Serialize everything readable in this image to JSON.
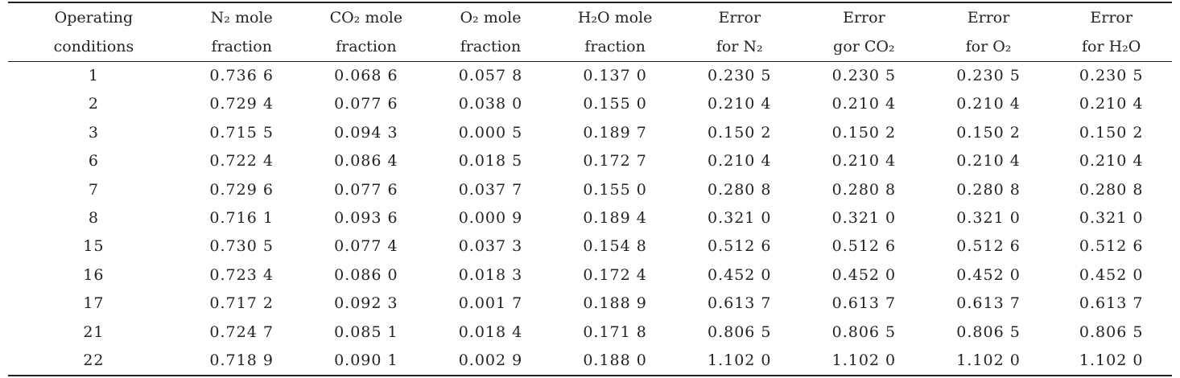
{
  "table": {
    "headers": [
      {
        "line1": "Operating",
        "line2": "conditions"
      },
      {
        "line1": "N₂ mole",
        "line2": "fraction"
      },
      {
        "line1": "CO₂ mole",
        "line2": "fraction"
      },
      {
        "line1": "O₂ mole",
        "line2": "fraction"
      },
      {
        "line1": "H₂O mole",
        "line2": "fraction"
      },
      {
        "line1": "Error",
        "line2": "for N₂"
      },
      {
        "line1": "Error",
        "line2": "gor CO₂"
      },
      {
        "line1": "Error",
        "line2": "for O₂"
      },
      {
        "line1": "Error",
        "line2": "for H₂O"
      }
    ],
    "rows": [
      [
        "1",
        "0.736 6",
        "0.068 6",
        "0.057 8",
        "0.137 0",
        "0.230 5",
        "0.230 5",
        "0.230 5",
        "0.230 5"
      ],
      [
        "2",
        "0.729 4",
        "0.077 6",
        "0.038 0",
        "0.155 0",
        "0.210 4",
        "0.210 4",
        "0.210 4",
        "0.210 4"
      ],
      [
        "3",
        "0.715 5",
        "0.094 3",
        "0.000 5",
        "0.189 7",
        "0.150 2",
        "0.150 2",
        "0.150 2",
        "0.150 2"
      ],
      [
        "6",
        "0.722 4",
        "0.086 4",
        "0.018 5",
        "0.172 7",
        "0.210 4",
        "0.210 4",
        "0.210 4",
        "0.210 4"
      ],
      [
        "7",
        "0.729 6",
        "0.077 6",
        "0.037 7",
        "0.155 0",
        "0.280 8",
        "0.280 8",
        "0.280 8",
        "0.280 8"
      ],
      [
        "8",
        "0.716 1",
        "0.093 6",
        "0.000 9",
        "0.189 4",
        "0.321 0",
        "0.321 0",
        "0.321 0",
        "0.321 0"
      ],
      [
        "15",
        "0.730 5",
        "0.077 4",
        "0.037 3",
        "0.154 8",
        "0.512 6",
        "0.512 6",
        "0.512 6",
        "0.512 6"
      ],
      [
        "16",
        "0.723 4",
        "0.086 0",
        "0.018 3",
        "0.172 4",
        "0.452 0",
        "0.452 0",
        "0.452 0",
        "0.452 0"
      ],
      [
        "17",
        "0.717 2",
        "0.092 3",
        "0.001 7",
        "0.188 9",
        "0.613 7",
        "0.613 7",
        "0.613 7",
        "0.613 7"
      ],
      [
        "21",
        "0.724 7",
        "0.085 1",
        "0.018 4",
        "0.171 8",
        "0.806 5",
        "0.806 5",
        "0.806 5",
        "0.806 5"
      ],
      [
        "22",
        "0.718 9",
        "0.090 1",
        "0.002 9",
        "0.188 0",
        "1.102 0",
        "1.102 0",
        "1.102 0",
        "1.102 0"
      ]
    ]
  }
}
